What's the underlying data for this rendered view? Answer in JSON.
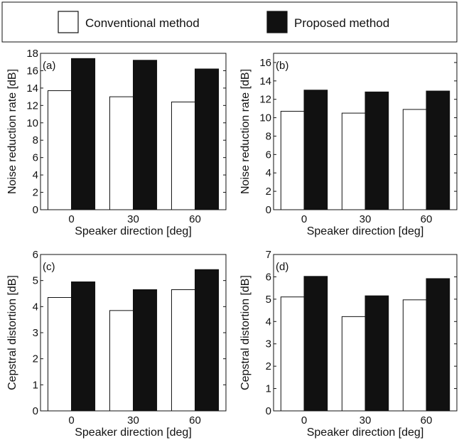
{
  "legend": {
    "items": [
      {
        "label": "Conventional method",
        "color": "#ffffff"
      },
      {
        "label": "Proposed method",
        "color": "#111111"
      }
    ]
  },
  "chart_data": [
    {
      "type": "bar",
      "panel_label": "(a)",
      "categories": [
        "0",
        "30",
        "60"
      ],
      "series": [
        {
          "name": "Conventional method",
          "values": [
            13.7,
            13.0,
            12.4
          ]
        },
        {
          "name": "Proposed method",
          "values": [
            17.4,
            17.2,
            16.2
          ]
        }
      ],
      "xlabel": "Speaker direction [deg]",
      "ylabel": "Noise reduction rate [dB]",
      "ylim": [
        0,
        18
      ],
      "yticks": [
        0,
        2,
        4,
        6,
        8,
        10,
        12,
        14,
        16,
        18
      ]
    },
    {
      "type": "bar",
      "panel_label": "(b)",
      "categories": [
        "0",
        "30",
        "60"
      ],
      "series": [
        {
          "name": "Conventional method",
          "values": [
            10.7,
            10.5,
            10.9
          ]
        },
        {
          "name": "Proposed method",
          "values": [
            13.0,
            12.8,
            12.9
          ]
        }
      ],
      "xlabel": "Speaker direction [deg]",
      "ylabel": "Noise reduction rate [dB]",
      "ylim": [
        0,
        17
      ],
      "yticks": [
        0,
        2,
        4,
        6,
        8,
        10,
        12,
        14,
        16
      ]
    },
    {
      "type": "bar",
      "panel_label": "(c)",
      "categories": [
        "0",
        "30",
        "60"
      ],
      "series": [
        {
          "name": "Conventional method",
          "values": [
            4.35,
            3.85,
            4.65
          ]
        },
        {
          "name": "Proposed method",
          "values": [
            4.95,
            4.65,
            5.42
          ]
        }
      ],
      "xlabel": "Speaker direction [deg]",
      "ylabel": "Cepstral distortion [dB]",
      "ylim": [
        0,
        6
      ],
      "yticks": [
        0,
        1,
        2,
        3,
        4,
        5,
        6
      ]
    },
    {
      "type": "bar",
      "panel_label": "(d)",
      "categories": [
        "0",
        "30",
        "60"
      ],
      "series": [
        {
          "name": "Conventional method",
          "values": [
            5.1,
            4.22,
            4.97
          ]
        },
        {
          "name": "Proposed method",
          "values": [
            6.02,
            5.15,
            5.92
          ]
        }
      ],
      "xlabel": "Speaker direction [deg]",
      "ylabel": "Cepstral distortion [dB]",
      "ylim": [
        0,
        7
      ],
      "yticks": [
        0,
        1,
        2,
        3,
        4,
        5,
        6,
        7
      ]
    }
  ]
}
